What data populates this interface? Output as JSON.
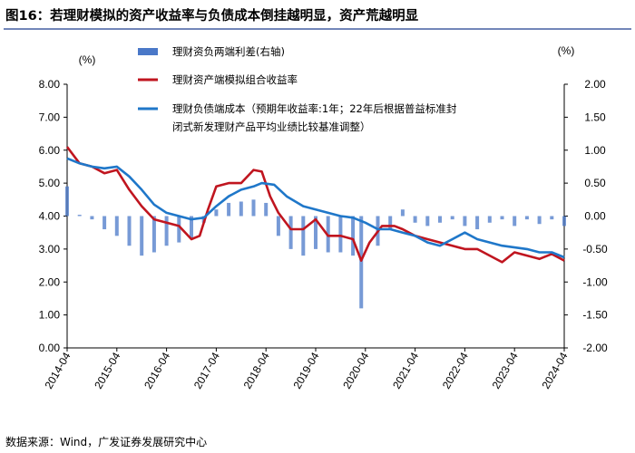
{
  "figure": {
    "title": "图16：若理财模拟的资产收益率与负债成本倒挂越明显，资产荒越明显",
    "source": "数据来源：Wind，广发证券发展研究中心"
  },
  "colors": {
    "accent": "#1f3f8f",
    "spread": "#4a78c8",
    "asset": "#c0151f",
    "cost": "#1f77c9",
    "axis": "#000000"
  },
  "chart_data": {
    "type": "line",
    "x_axis": {
      "ticks": [
        "2014-04",
        "2015-04",
        "2016-04",
        "2017-04",
        "2018-04",
        "2019-04",
        "2020-04",
        "2021-04",
        "2022-04",
        "2023-04",
        "2024-04"
      ],
      "range": [
        "2014-04",
        "2024-04"
      ]
    },
    "y_left": {
      "unit": "(%)",
      "ylim": [
        0,
        8
      ],
      "ticks": [
        "0.00",
        "1.00",
        "2.00",
        "3.00",
        "4.00",
        "5.00",
        "6.00",
        "7.00",
        "8.00"
      ]
    },
    "y_right": {
      "unit": "(%)",
      "ylim": [
        -2,
        2
      ],
      "ticks": [
        "-2.00",
        "-1.50",
        "-1.00",
        "-0.50",
        "0.00",
        "0.50",
        "1.00",
        "1.50",
        "2.00"
      ]
    },
    "legend": [
      {
        "name": "理财资负两端利差(右轴)",
        "kind": "bar",
        "color_key": "spread"
      },
      {
        "name": "理财资产端模拟组合收益率",
        "kind": "line",
        "color_key": "asset"
      },
      {
        "name": "理财负债端成本（预期年收益率:1年；22年后根据普益标准封闭式新发理财产品平均业绩比较基准调整）",
        "kind": "line",
        "color_key": "cost"
      }
    ],
    "series": [
      {
        "name": "理财资产端模拟组合收益率",
        "axis": "left",
        "kind": "line",
        "x": [
          "2014-04",
          "2014-07",
          "2014-10",
          "2015-01",
          "2015-04",
          "2015-07",
          "2015-10",
          "2016-01",
          "2016-04",
          "2016-07",
          "2016-10",
          "2016-12",
          "2017-02",
          "2017-04",
          "2017-07",
          "2017-10",
          "2018-01",
          "2018-03",
          "2018-05",
          "2018-07",
          "2018-10",
          "2019-01",
          "2019-04",
          "2019-07",
          "2019-10",
          "2020-01",
          "2020-03",
          "2020-05",
          "2020-08",
          "2020-11",
          "2021-01",
          "2021-04",
          "2021-07",
          "2021-10",
          "2022-01",
          "2022-04",
          "2022-07",
          "2022-10",
          "2023-01",
          "2023-04",
          "2023-07",
          "2023-10",
          "2024-01",
          "2024-04"
        ],
        "values": [
          6.1,
          5.6,
          5.5,
          5.3,
          5.4,
          4.8,
          4.3,
          3.9,
          3.8,
          3.7,
          3.3,
          3.4,
          4.2,
          4.9,
          5.0,
          5.0,
          5.4,
          5.35,
          4.6,
          4.1,
          3.6,
          3.6,
          3.9,
          3.4,
          3.4,
          3.3,
          2.65,
          3.2,
          3.7,
          3.7,
          3.6,
          3.4,
          3.3,
          3.2,
          3.1,
          3.0,
          3.0,
          2.8,
          2.6,
          2.9,
          2.8,
          2.7,
          2.85,
          2.65
        ]
      },
      {
        "name": "理财负债端成本（预期年收益率:1年；22年后根据普益标准封闭式新发理财产品平均业绩比较基准调整）",
        "axis": "left",
        "kind": "line",
        "x": [
          "2014-04",
          "2014-07",
          "2014-10",
          "2015-01",
          "2015-04",
          "2015-07",
          "2015-10",
          "2016-01",
          "2016-04",
          "2016-07",
          "2016-10",
          "2017-01",
          "2017-04",
          "2017-07",
          "2017-10",
          "2018-01",
          "2018-03",
          "2018-06",
          "2018-09",
          "2019-01",
          "2019-04",
          "2019-07",
          "2019-10",
          "2020-01",
          "2020-04",
          "2020-07",
          "2020-10",
          "2021-01",
          "2021-04",
          "2021-07",
          "2021-10",
          "2022-01",
          "2022-04",
          "2022-07",
          "2022-10",
          "2023-01",
          "2023-04",
          "2023-07",
          "2023-10",
          "2024-01",
          "2024-04"
        ],
        "values": [
          5.75,
          5.6,
          5.5,
          5.45,
          5.5,
          5.2,
          4.8,
          4.35,
          4.1,
          4.0,
          3.9,
          3.95,
          4.3,
          4.6,
          4.8,
          4.9,
          5.0,
          4.95,
          4.6,
          4.3,
          4.2,
          4.1,
          4.0,
          3.95,
          3.8,
          3.6,
          3.6,
          3.5,
          3.4,
          3.2,
          3.1,
          3.3,
          3.5,
          3.3,
          3.2,
          3.1,
          3.05,
          3.0,
          2.9,
          2.9,
          2.75
        ]
      },
      {
        "name": "理财资负两端利差(右轴)",
        "axis": "right",
        "kind": "bar",
        "x": [
          "2014-04",
          "2014-07",
          "2014-10",
          "2015-01",
          "2015-04",
          "2015-07",
          "2015-10",
          "2016-01",
          "2016-04",
          "2016-07",
          "2016-10",
          "2017-01",
          "2017-04",
          "2017-07",
          "2017-10",
          "2018-01",
          "2018-04",
          "2018-07",
          "2018-10",
          "2019-01",
          "2019-04",
          "2019-07",
          "2019-10",
          "2020-01",
          "2020-03",
          "2020-07",
          "2020-10",
          "2021-01",
          "2021-04",
          "2021-07",
          "2021-10",
          "2022-01",
          "2022-04",
          "2022-07",
          "2022-10",
          "2023-01",
          "2023-04",
          "2023-07",
          "2023-10",
          "2024-01",
          "2024-04"
        ],
        "values": [
          0.45,
          0.02,
          -0.05,
          -0.2,
          -0.3,
          -0.45,
          -0.6,
          -0.55,
          -0.45,
          -0.4,
          -0.35,
          -0.1,
          0.1,
          0.2,
          0.22,
          0.25,
          0.2,
          -0.3,
          -0.5,
          -0.6,
          -0.5,
          -0.55,
          -0.55,
          -0.6,
          -1.4,
          -0.45,
          -0.2,
          0.1,
          -0.1,
          -0.15,
          -0.1,
          -0.05,
          -0.15,
          -0.2,
          -0.1,
          -0.05,
          -0.15,
          -0.05,
          -0.12,
          -0.05,
          -0.15
        ]
      }
    ]
  }
}
